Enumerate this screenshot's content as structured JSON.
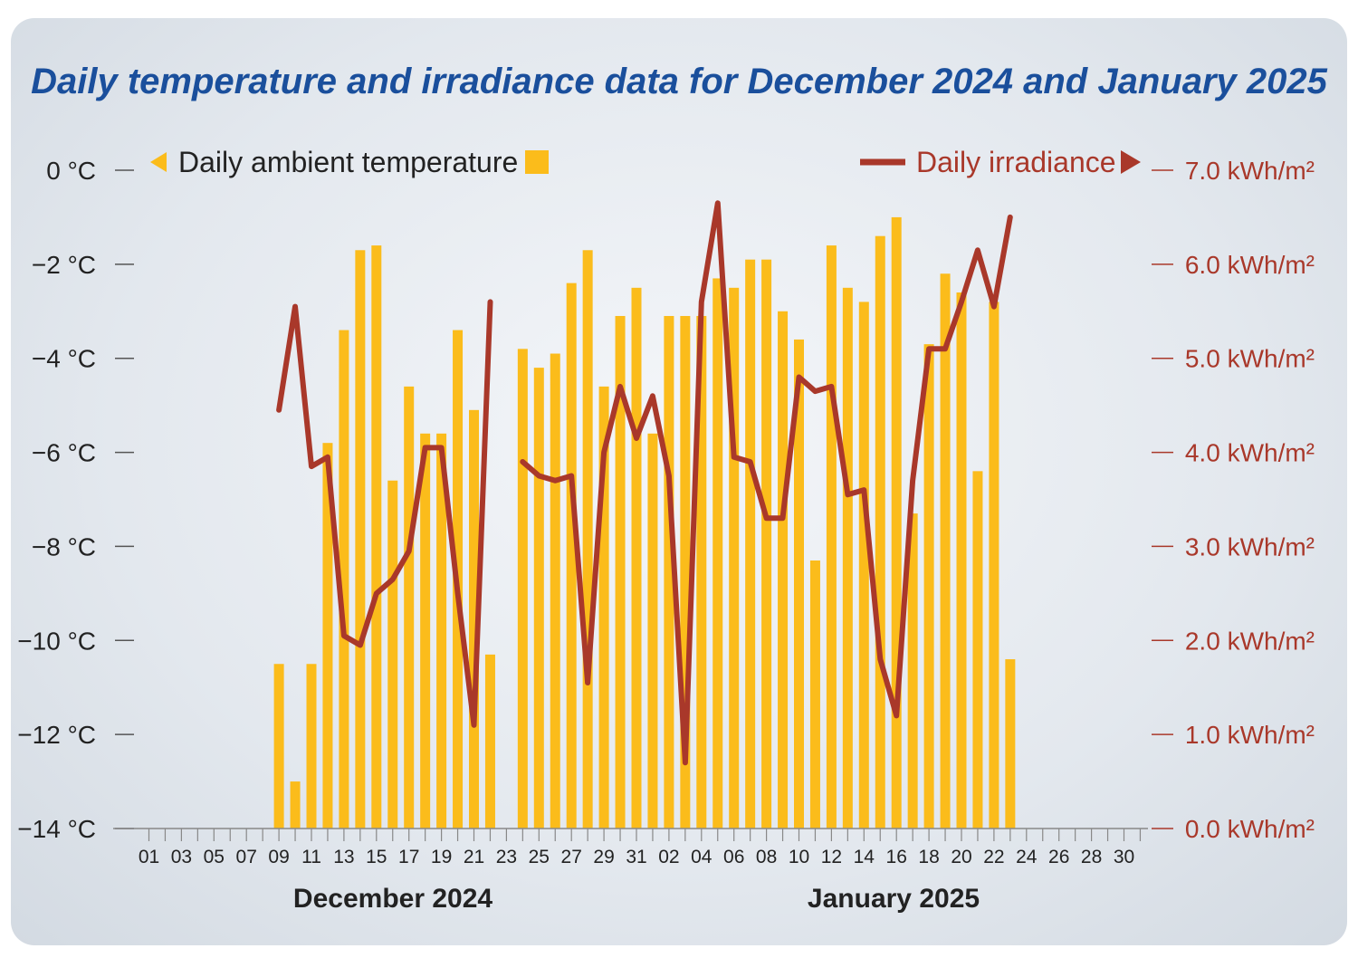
{
  "colors": {
    "bar": "#fbbc1b",
    "line": "#a9382a",
    "title": "#1a4f9c",
    "axis": "#555555"
  },
  "chart_data": {
    "type": "bar+line",
    "title": "Daily temperature and irradiance data for December 2024 and January 2025",
    "legend": {
      "temperature": "Daily ambient temperature",
      "irradiance": "Daily irradiance"
    },
    "months": [
      "December 2024",
      "January 2025"
    ],
    "x_tick_labels": [
      "01",
      "03",
      "05",
      "07",
      "09",
      "11",
      "13",
      "15",
      "17",
      "19",
      "21",
      "23",
      "25",
      "27",
      "29",
      "31",
      "02",
      "04",
      "06",
      "08",
      "10",
      "12",
      "14",
      "16",
      "18",
      "20",
      "22",
      "24",
      "26",
      "28",
      "30"
    ],
    "y_left": {
      "label_suffix": "°C",
      "ylim": [
        -14,
        0
      ],
      "ticks": [
        "0 °C",
        "−2 °C",
        "−4 °C",
        "−6 °C",
        "−8 °C",
        "−10 °C",
        "−12 °C",
        "−14 °C"
      ],
      "tick_values": [
        0,
        -2,
        -4,
        -6,
        -8,
        -10,
        -12,
        -14
      ]
    },
    "y_right": {
      "ylim": [
        0,
        7
      ],
      "ticks": [
        "7.0 kWh/m²",
        "6.0 kWh/m²",
        "5.0 kWh/m²",
        "4.0 kWh/m²",
        "3.0 kWh/m²",
        "2.0 kWh/m²",
        "1.0 kWh/m²",
        "0.0 kWh/m²"
      ],
      "tick_values": [
        7,
        6,
        5,
        4,
        3,
        2,
        1,
        0
      ]
    },
    "day_count": 62,
    "series": [
      {
        "name": "Daily ambient temperature",
        "axis": "left",
        "kind": "bar",
        "values": [
          null,
          null,
          null,
          null,
          null,
          null,
          null,
          null,
          -10.5,
          -13.0,
          -10.5,
          -5.8,
          -3.4,
          -1.7,
          -1.6,
          -6.6,
          -4.6,
          -5.6,
          -5.6,
          -3.4,
          -5.1,
          -10.3,
          null,
          -3.8,
          -4.2,
          -3.9,
          -2.4,
          -1.7,
          -4.6,
          -3.1,
          -2.5,
          -5.6,
          -3.1,
          -3.1,
          -3.1,
          -2.3,
          -2.5,
          -1.9,
          -1.9,
          -3.0,
          -3.6,
          -8.3,
          -1.6,
          -2.5,
          -2.8,
          -1.4,
          -1.0,
          -7.3,
          -3.7,
          -2.2,
          -2.6,
          -6.4,
          -2.8,
          -10.4,
          null,
          null,
          null,
          null,
          null,
          null,
          null,
          null
        ]
      },
      {
        "name": "Daily irradiance",
        "axis": "right",
        "kind": "line",
        "values": [
          null,
          null,
          null,
          null,
          null,
          null,
          null,
          null,
          4.45,
          5.55,
          3.85,
          3.95,
          2.05,
          1.95,
          2.5,
          2.65,
          2.95,
          4.05,
          4.05,
          2.5,
          1.1,
          5.6,
          null,
          3.9,
          3.75,
          3.7,
          3.75,
          1.55,
          4.0,
          4.7,
          4.15,
          4.6,
          3.75,
          0.7,
          5.6,
          6.65,
          3.95,
          3.9,
          3.3,
          3.3,
          4.8,
          4.65,
          4.7,
          3.55,
          3.6,
          1.8,
          1.2,
          3.7,
          5.1,
          5.1,
          5.6,
          6.15,
          5.55,
          6.5,
          null,
          null,
          null,
          null,
          null,
          null,
          null,
          null
        ]
      }
    ]
  }
}
